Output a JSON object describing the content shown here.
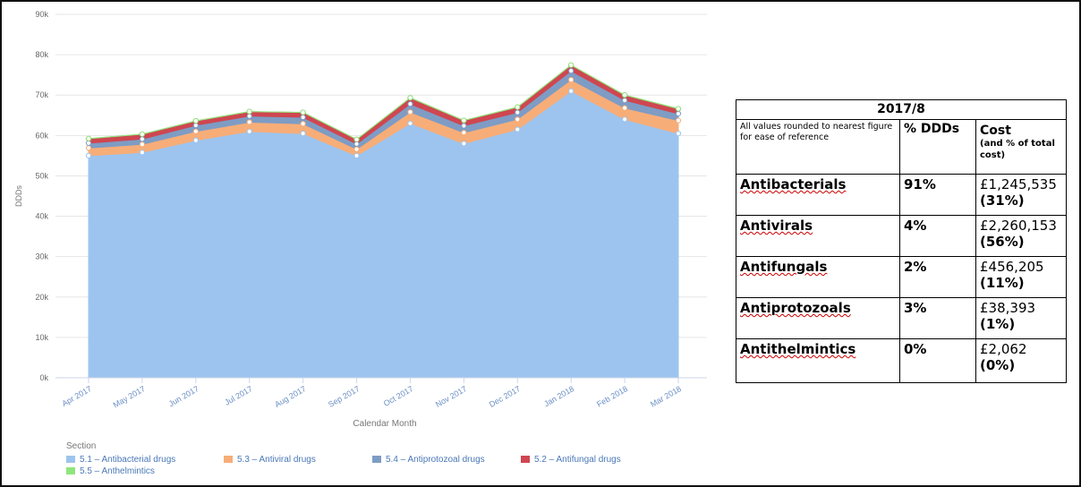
{
  "chart_data": {
    "type": "stacked_area",
    "ylabel": "DDDs",
    "xlabel": "Calendar Month",
    "legend_title": "Section",
    "categories": [
      "Apr 2017",
      "May 2017",
      "Jun 2017",
      "Jul 2017",
      "Aug 2017",
      "Sep 2017",
      "Oct 2017",
      "Nov 2017",
      "Dec 2017",
      "Jan 2018",
      "Feb 2018",
      "Mar 2018"
    ],
    "ylim": [
      0,
      90000
    ],
    "yticks": [
      {
        "value": 0,
        "label": "0k"
      },
      {
        "value": 10000,
        "label": "10k"
      },
      {
        "value": 20000,
        "label": "20k"
      },
      {
        "value": 30000,
        "label": "30k"
      },
      {
        "value": 40000,
        "label": "40k"
      },
      {
        "value": 50000,
        "label": "50k"
      },
      {
        "value": 60000,
        "label": "60k"
      },
      {
        "value": 70000,
        "label": "70k"
      },
      {
        "value": 80000,
        "label": "80k"
      },
      {
        "value": 90000,
        "label": "90k"
      }
    ],
    "grid": true,
    "series": [
      {
        "name": "5.1 – Antibacterial drugs",
        "color": "#9dc4ee",
        "values": [
          55000,
          55800,
          58800,
          61000,
          60500,
          55000,
          63000,
          58000,
          61500,
          71000,
          64000,
          60500
        ]
      },
      {
        "name": "5.3 – Antiviral drugs",
        "color": "#f7ad78",
        "values": [
          1900,
          2000,
          2200,
          2300,
          2400,
          1600,
          2800,
          2700,
          2500,
          2800,
          2800,
          3200
        ]
      },
      {
        "name": "5.4 – Antiprotozoal drugs",
        "color": "#7e9cc4",
        "values": [
          1200,
          1300,
          1500,
          1500,
          1600,
          1300,
          2000,
          1700,
          1700,
          2200,
          1900,
          1700
        ]
      },
      {
        "name": "5.2 – Antifungal drugs",
        "color": "#cf4650",
        "values": [
          1100,
          1200,
          1100,
          1100,
          1200,
          1100,
          1500,
          1300,
          1300,
          1400,
          1300,
          1200
        ]
      },
      {
        "name": "5.5 – Anthelmintics",
        "color": "#8fe67c",
        "values": [
          30,
          30,
          30,
          30,
          30,
          30,
          30,
          30,
          30,
          30,
          30,
          30
        ]
      }
    ]
  },
  "table": {
    "title": "2017/8",
    "header": [
      "All values rounded to nearest figure for ease of reference",
      "% DDDs",
      "Cost",
      "(and % of total cost)"
    ],
    "rows": [
      [
        "Antibacterials",
        "91%",
        "£1,245,535",
        "(31%)"
      ],
      [
        "Antivirals",
        "4%",
        "£2,260,153",
        "(56%)"
      ],
      [
        "Antifungals",
        "2%",
        "£456,205",
        "(11%)"
      ],
      [
        "Antiprotozoals",
        "3%",
        "£38,393",
        "(1%)"
      ],
      [
        "Antithelmintics",
        "0%",
        "£2,062",
        "(0%)"
      ]
    ]
  }
}
